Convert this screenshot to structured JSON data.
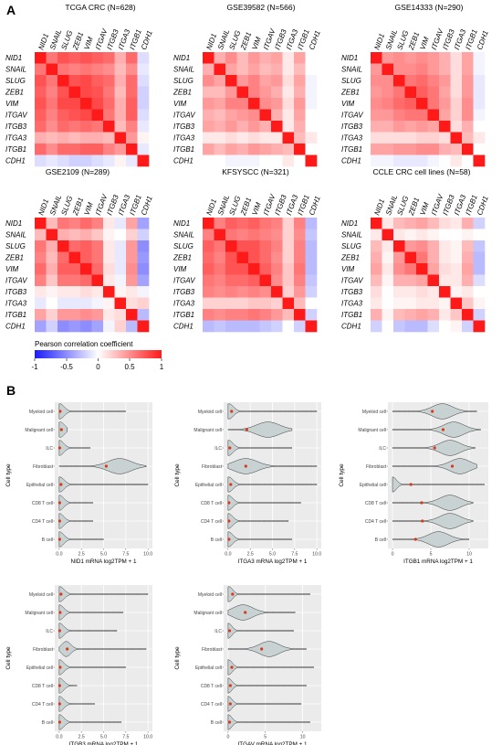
{
  "panels": {
    "a_label": "A",
    "b_label": "B"
  },
  "heatmap_genes": [
    "NID1",
    "SNAIL",
    "SLUG",
    "ZEB1",
    "VIM",
    "ITGAV",
    "ITGB3",
    "ITGA3",
    "ITGB1",
    "CDH1"
  ],
  "legend": {
    "title": "Pearson correlation coefficient",
    "ticks": [
      "-1",
      "-0.5",
      "0",
      "0.5",
      "1"
    ],
    "colors": {
      "low": "#1a1aff",
      "mid": "#ffffff",
      "high": "#ff1a1a"
    }
  },
  "chart_data": [
    {
      "type": "heatmap",
      "title": "TCGA CRC (N=628)",
      "rows": [
        "NID1",
        "SNAIL",
        "SLUG",
        "ZEB1",
        "VIM",
        "ITGAV",
        "ITGB3",
        "ITGA3",
        "ITGB1",
        "CDH1"
      ],
      "cols": [
        "NID1",
        "SNAIL",
        "SLUG",
        "ZEB1",
        "VIM",
        "ITGAV",
        "ITGB3",
        "ITGA3",
        "ITGB1",
        "CDH1"
      ],
      "values": [
        [
          1,
          0.6,
          0.75,
          0.7,
          0.75,
          0.7,
          0.65,
          0.35,
          0.65,
          -0.15
        ],
        [
          0.6,
          1,
          0.6,
          0.55,
          0.6,
          0.55,
          0.5,
          0.3,
          0.5,
          -0.1
        ],
        [
          0.75,
          0.6,
          1,
          0.75,
          0.8,
          0.7,
          0.65,
          0.35,
          0.65,
          -0.15
        ],
        [
          0.7,
          0.55,
          0.75,
          1,
          0.8,
          0.75,
          0.6,
          0.3,
          0.65,
          -0.2
        ],
        [
          0.75,
          0.6,
          0.8,
          0.8,
          1,
          0.8,
          0.65,
          0.35,
          0.7,
          -0.2
        ],
        [
          0.7,
          0.55,
          0.7,
          0.75,
          0.8,
          1,
          0.6,
          0.35,
          0.7,
          -0.15
        ],
        [
          0.65,
          0.5,
          0.65,
          0.6,
          0.65,
          0.6,
          1,
          0.3,
          0.55,
          -0.1
        ],
        [
          0.35,
          0.3,
          0.35,
          0.3,
          0.35,
          0.35,
          0.3,
          1,
          0.45,
          0.05
        ],
        [
          0.65,
          0.5,
          0.65,
          0.65,
          0.7,
          0.7,
          0.55,
          0.45,
          1,
          -0.1
        ],
        [
          -0.15,
          -0.1,
          -0.15,
          -0.2,
          -0.2,
          -0.15,
          -0.1,
          0.05,
          -0.1,
          1
        ]
      ],
      "vmin": -1,
      "vmax": 1
    },
    {
      "type": "heatmap",
      "title": "GSE39582 (N=566)",
      "rows": [
        "NID1",
        "SNAIL",
        "SLUG",
        "ZEB1",
        "VIM",
        "ITGAV",
        "ITGB3",
        "ITGA3",
        "ITGB1",
        "CDH1"
      ],
      "cols": [
        "NID1",
        "SNAIL",
        "SLUG",
        "ZEB1",
        "VIM",
        "ITGAV",
        "ITGB3",
        "ITGA3",
        "ITGB1",
        "CDH1"
      ],
      "values": [
        [
          1,
          0.35,
          0.5,
          0.3,
          0.45,
          0.35,
          0.4,
          0.1,
          0.4,
          0.0
        ],
        [
          0.35,
          1,
          0.4,
          0.3,
          0.4,
          0.3,
          0.35,
          0.1,
          0.3,
          0.0
        ],
        [
          0.5,
          0.4,
          1,
          0.45,
          0.55,
          0.4,
          0.45,
          0.15,
          0.4,
          -0.05
        ],
        [
          0.3,
          0.3,
          0.45,
          1,
          0.55,
          0.45,
          0.35,
          0.1,
          0.35,
          -0.05
        ],
        [
          0.45,
          0.4,
          0.55,
          0.55,
          1,
          0.5,
          0.45,
          0.15,
          0.45,
          -0.05
        ],
        [
          0.35,
          0.3,
          0.4,
          0.45,
          0.5,
          1,
          0.35,
          0.1,
          0.4,
          0.0
        ],
        [
          0.4,
          0.35,
          0.45,
          0.35,
          0.45,
          0.35,
          1,
          0.1,
          0.35,
          0.0
        ],
        [
          0.1,
          0.1,
          0.15,
          0.1,
          0.15,
          0.1,
          0.1,
          1,
          0.3,
          0.1
        ],
        [
          0.4,
          0.3,
          0.4,
          0.35,
          0.45,
          0.4,
          0.35,
          0.3,
          1,
          0.0
        ],
        [
          0.0,
          0.0,
          -0.05,
          -0.05,
          -0.05,
          0.0,
          0.0,
          0.1,
          0.0,
          1
        ]
      ],
      "vmin": -1,
      "vmax": 1
    },
    {
      "type": "heatmap",
      "title": "GSE14333 (N=290)",
      "rows": [
        "NID1",
        "SNAIL",
        "SLUG",
        "ZEB1",
        "VIM",
        "ITGAV",
        "ITGB3",
        "ITGA3",
        "ITGB1",
        "CDH1"
      ],
      "cols": [
        "NID1",
        "SNAIL",
        "SLUG",
        "ZEB1",
        "VIM",
        "ITGAV",
        "ITGB3",
        "ITGA3",
        "ITGB1",
        "CDH1"
      ],
      "values": [
        [
          1,
          0.45,
          0.5,
          0.45,
          0.5,
          0.45,
          0.35,
          0.15,
          0.4,
          -0.05
        ],
        [
          0.45,
          1,
          0.5,
          0.5,
          0.55,
          0.45,
          0.35,
          0.15,
          0.4,
          -0.05
        ],
        [
          0.5,
          0.5,
          1,
          0.6,
          0.65,
          0.55,
          0.45,
          0.15,
          0.45,
          -0.1
        ],
        [
          0.45,
          0.5,
          0.6,
          1,
          0.7,
          0.6,
          0.4,
          0.15,
          0.45,
          -0.1
        ],
        [
          0.5,
          0.55,
          0.65,
          0.7,
          1,
          0.6,
          0.45,
          0.2,
          0.5,
          -0.1
        ],
        [
          0.45,
          0.45,
          0.55,
          0.6,
          0.6,
          1,
          0.4,
          0.2,
          0.5,
          -0.05
        ],
        [
          0.35,
          0.35,
          0.45,
          0.4,
          0.45,
          0.4,
          1,
          0.15,
          0.35,
          0.0
        ],
        [
          0.15,
          0.15,
          0.15,
          0.15,
          0.2,
          0.2,
          0.15,
          1,
          0.3,
          0.1
        ],
        [
          0.4,
          0.4,
          0.45,
          0.45,
          0.5,
          0.5,
          0.35,
          0.3,
          1,
          0.0
        ],
        [
          -0.05,
          -0.05,
          -0.1,
          -0.1,
          -0.1,
          -0.05,
          0.0,
          0.1,
          0.0,
          1
        ]
      ],
      "vmin": -1,
      "vmax": 1
    },
    {
      "type": "heatmap",
      "title": "GSE2109 (N=289)",
      "rows": [
        "NID1",
        "SNAIL",
        "SLUG",
        "ZEB1",
        "VIM",
        "ITGAV",
        "ITGB3",
        "ITGA3",
        "ITGB1",
        "CDH1"
      ],
      "cols": [
        "NID1",
        "SNAIL",
        "SLUG",
        "ZEB1",
        "VIM",
        "ITGAV",
        "ITGB3",
        "ITGA3",
        "ITGB1",
        "CDH1"
      ],
      "values": [
        [
          1,
          0.3,
          0.6,
          0.55,
          0.65,
          0.55,
          0.1,
          -0.1,
          0.4,
          -0.4
        ],
        [
          0.3,
          1,
          0.35,
          0.3,
          0.35,
          0.25,
          0.05,
          0.0,
          0.2,
          -0.2
        ],
        [
          0.6,
          0.35,
          1,
          0.65,
          0.7,
          0.6,
          0.1,
          -0.1,
          0.45,
          -0.5
        ],
        [
          0.55,
          0.3,
          0.65,
          1,
          0.7,
          0.6,
          0.1,
          -0.1,
          0.45,
          -0.45
        ],
        [
          0.65,
          0.35,
          0.7,
          0.7,
          1,
          0.65,
          0.15,
          -0.1,
          0.5,
          -0.5
        ],
        [
          0.55,
          0.25,
          0.6,
          0.6,
          0.65,
          1,
          0.1,
          -0.05,
          0.45,
          -0.4
        ],
        [
          0.1,
          0.05,
          0.1,
          0.1,
          0.15,
          0.1,
          1,
          0.05,
          0.1,
          -0.05
        ],
        [
          -0.1,
          0.0,
          -0.1,
          -0.1,
          -0.1,
          -0.05,
          0.05,
          1,
          0.15,
          0.2
        ],
        [
          0.4,
          0.2,
          0.45,
          0.45,
          0.5,
          0.45,
          0.1,
          0.15,
          1,
          -0.3
        ],
        [
          -0.4,
          -0.2,
          -0.5,
          -0.45,
          -0.5,
          -0.4,
          -0.05,
          0.2,
          -0.3,
          1
        ]
      ],
      "vmin": -1,
      "vmax": 1
    },
    {
      "type": "heatmap",
      "title": "KFSYSCC (N=321)",
      "rows": [
        "NID1",
        "SNAIL",
        "SLUG",
        "ZEB1",
        "VIM",
        "ITGAV",
        "ITGB3",
        "ITGA3",
        "ITGB1",
        "CDH1"
      ],
      "cols": [
        "NID1",
        "SNAIL",
        "SLUG",
        "ZEB1",
        "VIM",
        "ITGAV",
        "ITGB3",
        "ITGA3",
        "ITGB1",
        "CDH1"
      ],
      "values": [
        [
          1,
          0.55,
          0.7,
          0.65,
          0.7,
          0.6,
          0.55,
          0.2,
          0.55,
          -0.3
        ],
        [
          0.55,
          1,
          0.6,
          0.55,
          0.6,
          0.55,
          0.5,
          0.2,
          0.5,
          -0.25
        ],
        [
          0.7,
          0.6,
          1,
          0.75,
          0.75,
          0.65,
          0.55,
          0.2,
          0.55,
          -0.3
        ],
        [
          0.65,
          0.55,
          0.75,
          1,
          0.75,
          0.65,
          0.5,
          0.2,
          0.55,
          -0.3
        ],
        [
          0.7,
          0.6,
          0.75,
          0.75,
          1,
          0.7,
          0.55,
          0.25,
          0.6,
          -0.3
        ],
        [
          0.6,
          0.55,
          0.65,
          0.65,
          0.7,
          1,
          0.5,
          0.25,
          0.55,
          -0.25
        ],
        [
          0.55,
          0.5,
          0.55,
          0.5,
          0.55,
          0.5,
          1,
          0.2,
          0.45,
          -0.2
        ],
        [
          0.2,
          0.2,
          0.2,
          0.2,
          0.25,
          0.25,
          0.2,
          1,
          0.3,
          0.0
        ],
        [
          0.55,
          0.5,
          0.55,
          0.55,
          0.6,
          0.55,
          0.45,
          0.3,
          1,
          -0.2
        ],
        [
          -0.3,
          -0.25,
          -0.3,
          -0.3,
          -0.3,
          -0.25,
          -0.2,
          0.0,
          -0.2,
          1
        ]
      ],
      "vmin": -1,
      "vmax": 1
    },
    {
      "type": "heatmap",
      "title": "CCLE CRC cell lines (N=58)",
      "rows": [
        "NID1",
        "SNAIL",
        "SLUG",
        "ZEB1",
        "VIM",
        "ITGAV",
        "ITGB3",
        "ITGA3",
        "ITGB1",
        "CDH1"
      ],
      "cols": [
        "NID1",
        "SNAIL",
        "SLUG",
        "ZEB1",
        "VIM",
        "ITGAV",
        "ITGB3",
        "ITGA3",
        "ITGB1",
        "CDH1"
      ],
      "values": [
        [
          1,
          0.1,
          0.3,
          0.35,
          0.4,
          0.3,
          0.15,
          0.1,
          0.35,
          -0.2
        ],
        [
          0.1,
          1,
          0.1,
          0.05,
          0.1,
          0.05,
          0.0,
          0.0,
          0.05,
          0.0
        ],
        [
          0.3,
          0.1,
          1,
          0.45,
          0.5,
          0.35,
          0.1,
          0.05,
          0.3,
          -0.25
        ],
        [
          0.35,
          0.05,
          0.45,
          1,
          0.6,
          0.35,
          0.1,
          0.05,
          0.35,
          -0.3
        ],
        [
          0.4,
          0.1,
          0.5,
          0.6,
          1,
          0.4,
          0.15,
          0.1,
          0.4,
          -0.3
        ],
        [
          0.3,
          0.05,
          0.35,
          0.35,
          0.4,
          1,
          0.1,
          0.1,
          0.35,
          -0.15
        ],
        [
          0.15,
          0.0,
          0.1,
          0.1,
          0.15,
          0.1,
          1,
          0.05,
          0.1,
          0.0
        ],
        [
          0.1,
          0.0,
          0.05,
          0.05,
          0.1,
          0.1,
          0.05,
          1,
          0.25,
          0.05
        ],
        [
          0.35,
          0.05,
          0.3,
          0.35,
          0.4,
          0.35,
          0.1,
          0.25,
          1,
          -0.2
        ],
        [
          -0.2,
          0.0,
          -0.25,
          -0.3,
          -0.3,
          -0.15,
          0.0,
          0.05,
          -0.2,
          1
        ]
      ],
      "vmin": -1,
      "vmax": 1
    },
    {
      "type": "violin",
      "xlabel": "NID1 mRNA log2TPM + 1",
      "ylabel": "Cell type",
      "categories": [
        "Myeloid cell",
        "Malignant cell",
        "ILC",
        "Fibroblast",
        "Epithelial cell",
        "CD8 T cell",
        "CD4 T cell",
        "B cell"
      ],
      "x_ticks": [
        "0.0",
        "2.5",
        "5.0",
        "7.5",
        "10.0"
      ],
      "xlim": [
        -0.5,
        10.5
      ],
      "means": [
        0.1,
        0.25,
        0.05,
        5.3,
        0.2,
        0.05,
        0.05,
        0.05
      ],
      "density_peaks": [
        0.05,
        0.1,
        0.0,
        6.8,
        0.05,
        0.0,
        0.0,
        0.0
      ],
      "max_values": [
        7.5,
        0.9,
        3.5,
        9.8,
        10.0,
        3.8,
        3.8,
        5.0
      ]
    },
    {
      "type": "violin",
      "xlabel": "ITGA3 mRNA log2TPM + 1",
      "ylabel": "Cell type",
      "categories": [
        "Myeloid cell",
        "Malignant cell",
        "ILC",
        "Fibroblast",
        "Epithelial cell",
        "CD8 T cell",
        "CD4 T cell",
        "B cell"
      ],
      "x_ticks": [
        "0.0",
        "2.5",
        "5.0",
        "7.5",
        "10.0"
      ],
      "xlim": [
        -0.5,
        10.5
      ],
      "means": [
        0.4,
        2.1,
        0.2,
        2.0,
        0.3,
        0.1,
        0.1,
        0.1
      ],
      "density_peaks": [
        0.1,
        4.5,
        0.05,
        2.0,
        0.05,
        0.0,
        0.0,
        0.0
      ],
      "max_values": [
        10.0,
        7.2,
        7.2,
        10.0,
        10.0,
        8.2,
        6.8,
        7.2
      ]
    },
    {
      "type": "violin",
      "xlabel": "ITGB1 mRNA log2TPM + 1",
      "ylabel": "Cell type",
      "categories": [
        "Myeloid cell",
        "Malignant cell",
        "ILC",
        "Fibroblast",
        "Epithelial cell",
        "CD8 T cell",
        "CD4 T cell",
        "B cell"
      ],
      "x_ticks": [
        "0",
        "5",
        "10"
      ],
      "xlim": [
        -0.6,
        12.5
      ],
      "means": [
        5.2,
        6.6,
        5.5,
        7.8,
        2.4,
        3.8,
        3.9,
        3.0
      ],
      "density_peaks": [
        6.5,
        8.0,
        7.5,
        8.8,
        0.0,
        7.5,
        7.5,
        6.0
      ],
      "max_values": [
        11.0,
        11.5,
        10.8,
        11.0,
        12.0,
        10.5,
        10.5,
        10.0
      ]
    },
    {
      "type": "violin",
      "xlabel": "ITGB3 mRNA log2TPM + 1",
      "ylabel": "Cell type",
      "categories": [
        "Myeloid cell",
        "Malignant cell",
        "ILC",
        "Fibroblast",
        "Epithelial cell",
        "CD8 T cell",
        "CD4 T cell",
        "B cell"
      ],
      "x_ticks": [
        "0.0",
        "2.5",
        "5.0",
        "7.5",
        "10.0"
      ],
      "xlim": [
        -0.5,
        10.5
      ],
      "means": [
        0.2,
        0.1,
        0.05,
        0.9,
        0.1,
        0.05,
        0.05,
        0.05
      ],
      "density_peaks": [
        0.05,
        0.0,
        0.0,
        0.8,
        0.0,
        0.0,
        0.0,
        0.0
      ],
      "max_values": [
        10.0,
        7.2,
        6.5,
        9.8,
        7.5,
        2.0,
        4.0,
        7.0
      ]
    },
    {
      "type": "violin",
      "xlabel": "ITGAV mRNA log2TPM + 1",
      "ylabel": "Cell type",
      "categories": [
        "Myeloid cell",
        "Malignant cell",
        "ILC",
        "Fibroblast",
        "Epithelial cell",
        "CD8 T cell",
        "CD4 T cell",
        "B cell"
      ],
      "x_ticks": [
        "0",
        "5",
        "10"
      ],
      "xlim": [
        -0.6,
        12.5
      ],
      "means": [
        0.6,
        2.3,
        0.2,
        4.5,
        0.5,
        0.3,
        0.3,
        0.2
      ],
      "density_peaks": [
        0.1,
        2.0,
        0.0,
        5.5,
        0.05,
        0.0,
        0.0,
        0.0
      ],
      "max_values": [
        11.0,
        9.0,
        8.8,
        10.5,
        11.5,
        10.5,
        9.8,
        11.0
      ]
    }
  ]
}
